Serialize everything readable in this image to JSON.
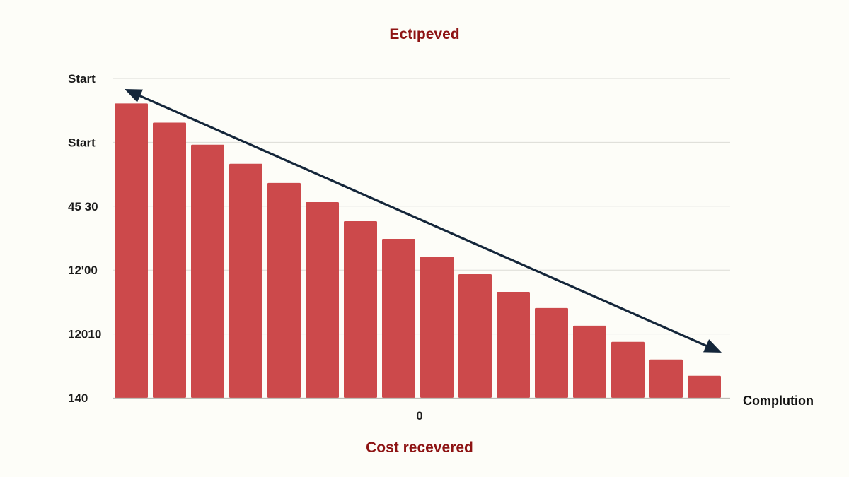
{
  "chart_data": {
    "type": "bar",
    "title": "Ectıpeved",
    "xlabel": "Cost recevered",
    "ylabel": "",
    "x_tick_labels": [
      "0"
    ],
    "y_tick_labels": [
      "Start",
      "Start",
      "45 30",
      "12ꞌ00",
      "12010",
      "140"
    ],
    "end_label": "Complution",
    "values": [
      100,
      93.5,
      86,
      79.5,
      73,
      66.5,
      60,
      54,
      48,
      42,
      36,
      30.5,
      24.5,
      19,
      13,
      7.5
    ],
    "ylim": [
      0,
      100
    ],
    "grid": true,
    "trend_arrow": {
      "from_value": 108.5,
      "to_value": 12.5,
      "double_headed": true
    },
    "colors": {
      "bar": "#cc494b",
      "arrow": "#14263a",
      "title": "#8e1414",
      "xlabel": "#8e1414",
      "background": "#fdfdf8"
    }
  }
}
